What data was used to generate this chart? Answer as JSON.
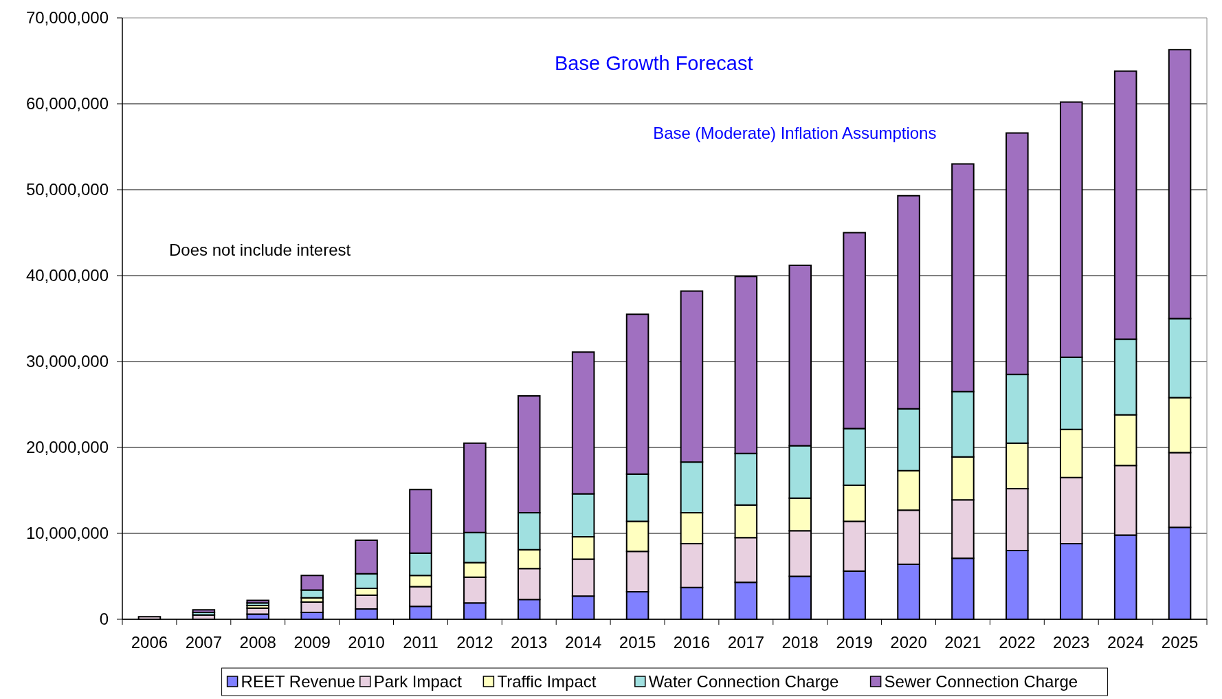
{
  "chart_data": {
    "type": "bar",
    "title": "Base Growth Forecast",
    "subtitle": "Base (Moderate) Inflation Assumptions",
    "annotations": [
      "Does not include interest"
    ],
    "categories": [
      "2006",
      "2007",
      "2008",
      "2009",
      "2010",
      "2011",
      "2012",
      "2013",
      "2014",
      "2015",
      "2016",
      "2017",
      "2018",
      "2019",
      "2020",
      "2021",
      "2022",
      "2023",
      "2024",
      "2025"
    ],
    "stacked": true,
    "ylim": [
      0,
      70000000
    ],
    "yticks": [
      {
        "value": 0,
        "label": "0"
      },
      {
        "value": 10000000,
        "label": "10,000,000"
      },
      {
        "value": 20000000,
        "label": "20,000,000"
      },
      {
        "value": 30000000,
        "label": "30,000,000"
      },
      {
        "value": 40000000,
        "label": "40,000,000"
      },
      {
        "value": 50000000,
        "label": "50,000,000"
      },
      {
        "value": 60000000,
        "label": "60,000,000"
      },
      {
        "value": 70000000,
        "label": "70,000,000"
      }
    ],
    "grid": "y",
    "legend": "bottom",
    "series": [
      {
        "name": "REET Revenue",
        "color": "#8080ff",
        "values": [
          null,
          null,
          600000,
          800000,
          1200000,
          1500000,
          1900000,
          2300000,
          2700000,
          3200000,
          3700000,
          4300000,
          5000000,
          5600000,
          6400000,
          7100000,
          8000000,
          8800000,
          9800000,
          10700000
        ]
      },
      {
        "name": "Park Impact",
        "color": "#e8d0e0",
        "values": [
          300000,
          500000,
          700000,
          1200000,
          1600000,
          2300000,
          3000000,
          3600000,
          4300000,
          4700000,
          5100000,
          5200000,
          5300000,
          5800000,
          6300000,
          6800000,
          7200000,
          7700000,
          8100000,
          8700000
        ]
      },
      {
        "name": "Traffic Impact",
        "color": "#ffffc0",
        "values": [
          null,
          null,
          300000,
          500000,
          800000,
          1300000,
          1700000,
          2200000,
          2600000,
          3500000,
          3600000,
          3800000,
          3800000,
          4200000,
          4600000,
          5000000,
          5300000,
          5600000,
          5900000,
          6400000
        ]
      },
      {
        "name": "Water Connection Charge",
        "color": "#a0e0e0",
        "values": [
          null,
          300000,
          300000,
          900000,
          1700000,
          2600000,
          3500000,
          4300000,
          5000000,
          5500000,
          5900000,
          6000000,
          6100000,
          6600000,
          7200000,
          7600000,
          8000000,
          8400000,
          8800000,
          9200000
        ]
      },
      {
        "name": "Sewer Connection Charge",
        "color": "#a070c0",
        "values": [
          null,
          300000,
          300000,
          1700000,
          3900000,
          7400000,
          10400000,
          13600000,
          16500000,
          18600000,
          19900000,
          20600000,
          21000000,
          22800000,
          24800000,
          26500000,
          28100000,
          29700000,
          31200000,
          31300000
        ]
      }
    ]
  }
}
